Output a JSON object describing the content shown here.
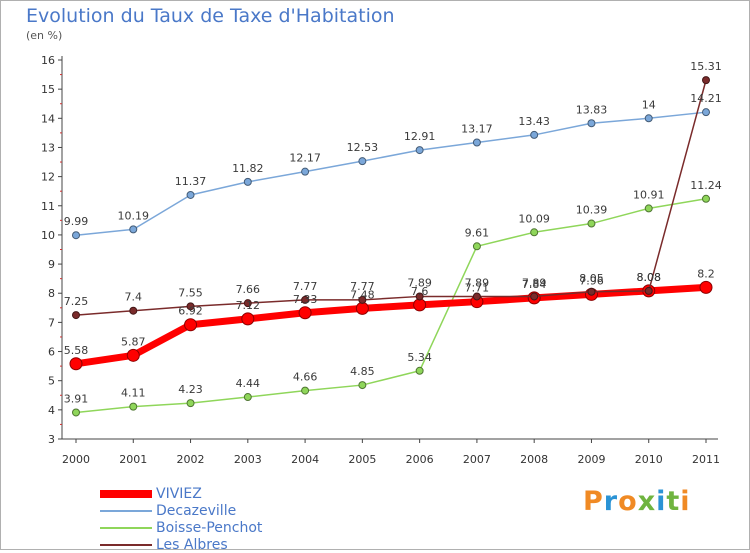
{
  "title": "Evolution du Taux de Taxe d'Habitation",
  "unit": "(en %)",
  "logo": {
    "text": "Proxiti",
    "colors": [
      "#f08a24",
      "#2a93d5",
      "#f08a24",
      "#6fb43f",
      "#2a93d5",
      "#6fb43f",
      "#f08a24"
    ]
  },
  "chart_data": {
    "type": "line",
    "categories": [
      "2000",
      "2001",
      "2002",
      "2003",
      "2004",
      "2005",
      "2006",
      "2007",
      "2008",
      "2009",
      "2010",
      "2011"
    ],
    "ylim": [
      3,
      16
    ],
    "yticks": [
      3,
      4,
      5,
      6,
      7,
      8,
      9,
      10,
      11,
      12,
      13,
      14,
      15,
      16
    ],
    "grid": false,
    "legend_position": "bottom-left",
    "series": [
      {
        "name": "VIVIEZ",
        "color": "#ff0000",
        "values": [
          5.58,
          5.87,
          6.92,
          7.12,
          7.33,
          7.48,
          7.6,
          7.71,
          7.84,
          7.96,
          8.08,
          8.2
        ],
        "labels": [
          "5.58",
          "5.87",
          "6.92",
          "7.12",
          "7.33",
          "7.48",
          "7.6",
          "7.71",
          "7.84",
          "7.96",
          "8.08",
          "8.2"
        ]
      },
      {
        "name": "Decazeville",
        "color": "#7ba7d9",
        "values": [
          9.99,
          10.19,
          11.37,
          11.82,
          12.17,
          12.53,
          12.91,
          13.17,
          13.43,
          13.83,
          14,
          14.21
        ],
        "labels": [
          "9.99",
          "10.19",
          "11.37",
          "11.82",
          "12.17",
          "12.53",
          "12.91",
          "13.17",
          "13.43",
          "13.83",
          "14",
          "14.21"
        ]
      },
      {
        "name": "Boisse-Penchot",
        "color": "#8fd65a",
        "values": [
          3.91,
          4.11,
          4.23,
          4.44,
          4.66,
          4.85,
          5.34,
          9.61,
          10.09,
          10.39,
          10.91,
          11.24
        ],
        "labels": [
          "3.91",
          "4.11",
          "4.23",
          "4.44",
          "4.66",
          "4.85",
          "5.34",
          "9.61",
          "10.09",
          "10.39",
          "10.91",
          "11.24"
        ]
      },
      {
        "name": "Les Albres",
        "color": "#7a2b2b",
        "values": [
          7.25,
          7.4,
          7.55,
          7.66,
          7.77,
          7.77,
          7.89,
          7.89,
          7.89,
          8.05,
          8.08,
          15.31
        ],
        "labels": [
          "7.25",
          "7.4",
          "7.55",
          "7.66",
          "7.77",
          "7.77",
          "7.89",
          "7.89",
          "7.89",
          "8.05",
          "8.08",
          "15.31"
        ]
      }
    ]
  }
}
